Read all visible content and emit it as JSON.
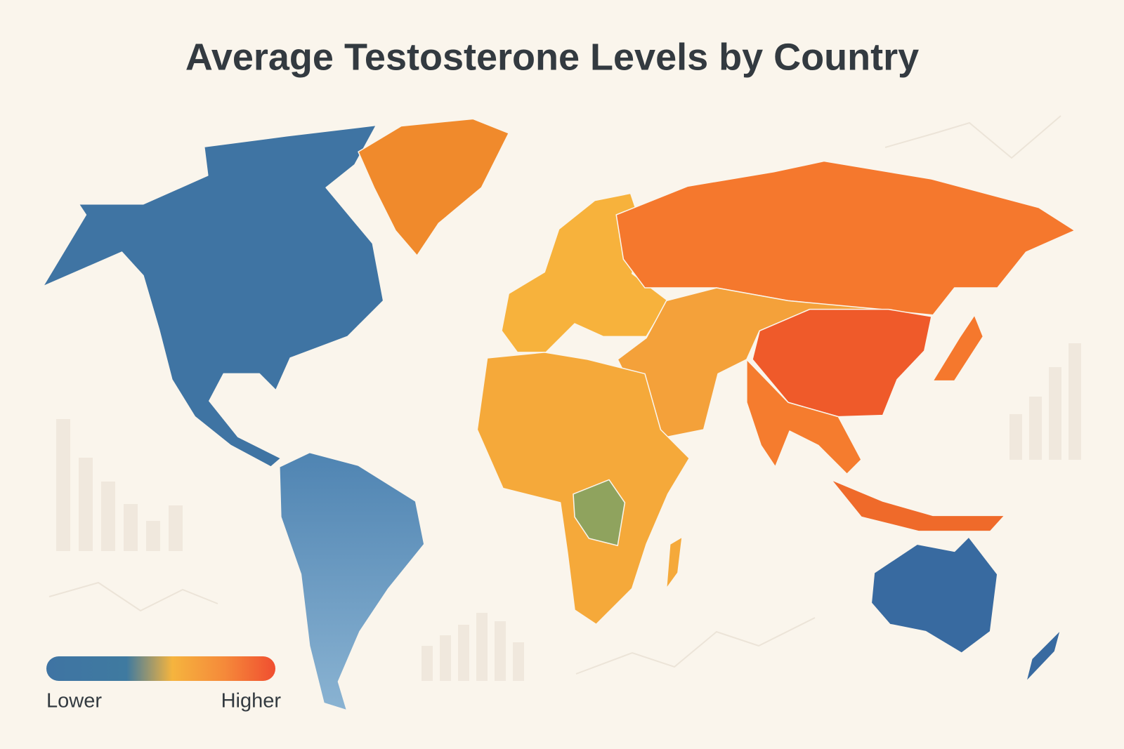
{
  "header": {
    "title": "Average Testosterone Levels by Country"
  },
  "legend": {
    "low_label": "Lower",
    "high_label": "Higher"
  }
}
